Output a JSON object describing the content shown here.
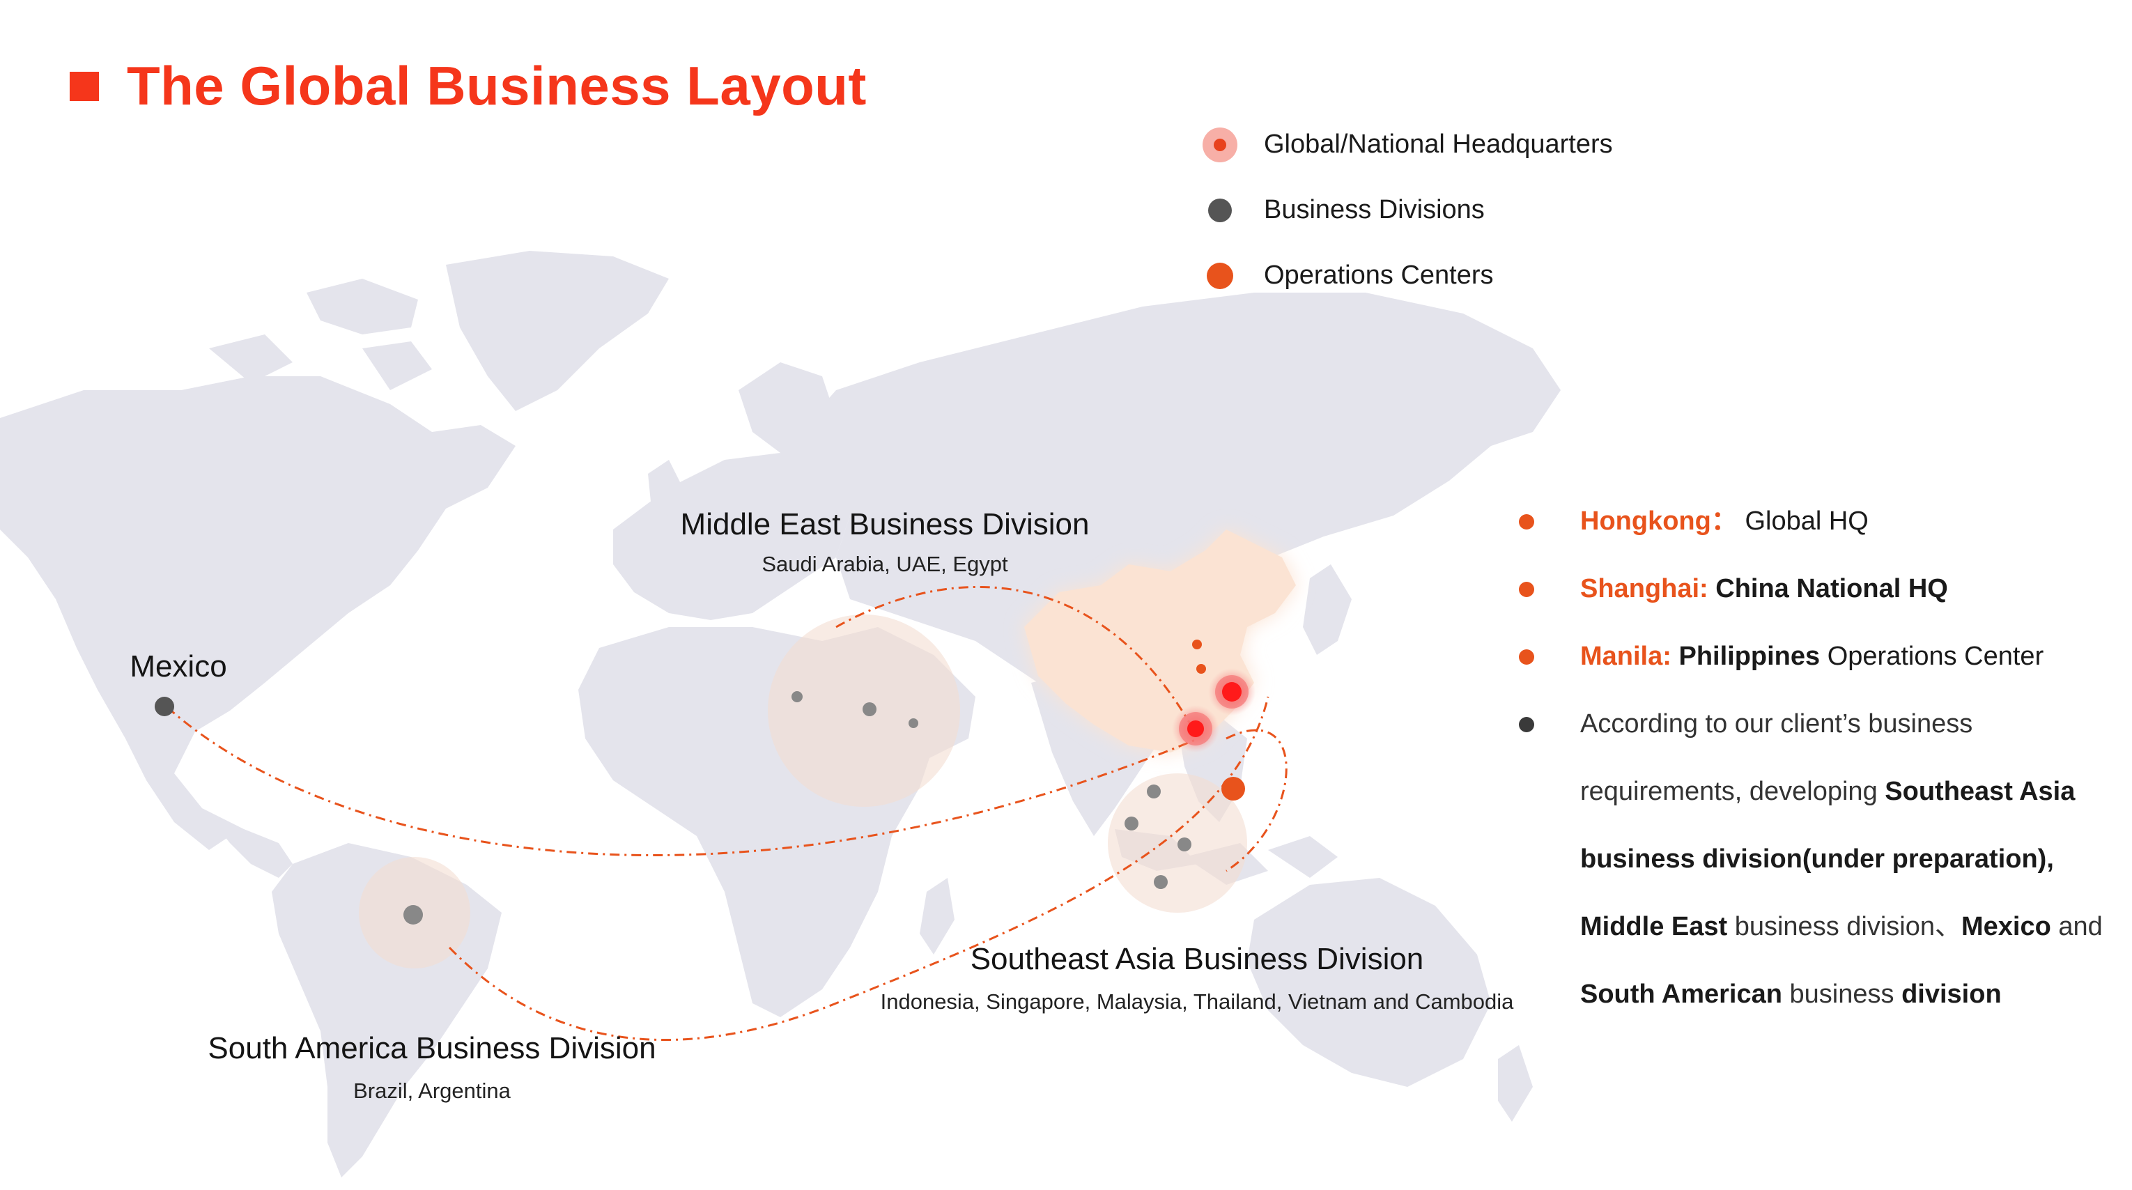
{
  "title": "The Global Business Layout",
  "legend": [
    {
      "marker": "hq",
      "label": "Global/National Headquarters"
    },
    {
      "marker": "division",
      "label": "Business Divisions"
    },
    {
      "marker": "operations",
      "label": "Operations Centers"
    }
  ],
  "regions": {
    "middle_east": {
      "title": "Middle East Business Division",
      "countries": "Saudi Arabia, UAE,  Egypt"
    },
    "mexico": {
      "title": "Mexico"
    },
    "southeast_asia": {
      "title": "Southeast Asia Business Division",
      "countries": "Indonesia, Singapore, Malaysia, Thailand, Vietnam and Cambodia"
    },
    "south_america": {
      "title": "South America Business Division",
      "countries": "Brazil, Argentina"
    }
  },
  "locations": {
    "hongkong": {
      "name": "Hongkong",
      "sep": "：",
      "role": "Global HQ"
    },
    "shanghai": {
      "name": "Shanghai:",
      "role": "China National HQ"
    },
    "manila": {
      "name": "Manila:",
      "role_bold": "Philippines",
      "role_rest": " Operations Center"
    }
  },
  "description": {
    "p1": "According to our client’s business requirements, developing ",
    "b1": "Southeast Asia business division",
    "b2": "(under preparation),",
    "b3": "Middle East",
    "p2": " business division、",
    "b4": "Mexico",
    "p3": " and ",
    "b5": "South American",
    "p4": " business ",
    "b6": "division"
  },
  "colors": {
    "accent": "#f5361b",
    "orange": "#e8531c",
    "map_land": "#e4e4ec",
    "china_fill": "#fbe3d3",
    "division_dot": "#555555"
  },
  "icons": {
    "title_marker": "red-square-icon",
    "hq_marker": "hq-pulse-dot-icon",
    "division_marker": "gray-dot-icon",
    "operations_marker": "orange-dot-icon"
  }
}
